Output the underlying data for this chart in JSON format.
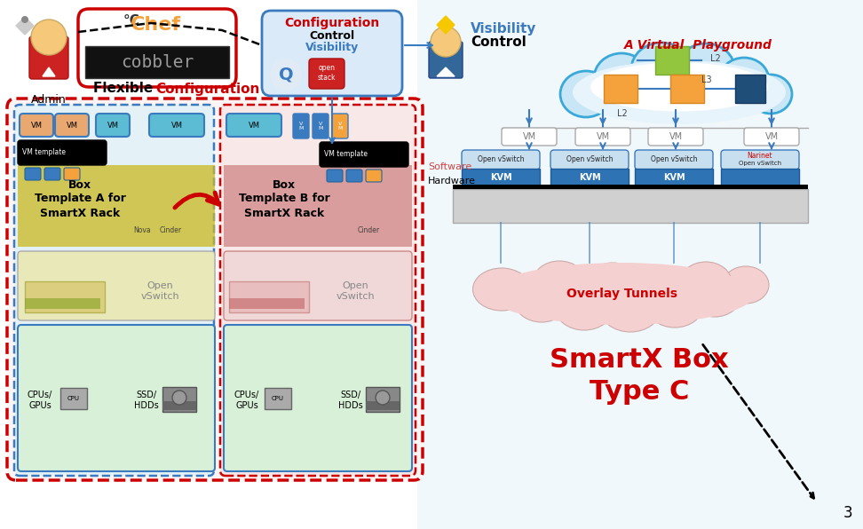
{
  "fig_width": 9.72,
  "fig_height": 5.96,
  "background_color": "#ffffff",
  "virtual_playground_title": "A Virtual  Playground",
  "visibility_text1": "Visibility",
  "visibility_text2": "Control",
  "config_text1": "Configuration",
  "config_text2": "Control",
  "config_text3": "Visibility",
  "flexible_text1": "Flexible ",
  "flexible_text2": "Configuration",
  "admin_text": "Admin",
  "smartx_text1": "SmartX Box",
  "smartx_text2": "Type C",
  "overlay_text": "Overlay Tunnels",
  "software_text": "Software",
  "hardware_text": "Hardware",
  "page_number": "3",
  "cloud_color": "#4db8e8",
  "green_box_color": "#92c63e",
  "orange_box_color": "#f5a23d",
  "dark_blue_box_color": "#1f4e79",
  "kvm_color": "#2e74b5",
  "red_border_color": "#cc0000",
  "teal_vm_color": "#4db8c8",
  "overlay_cloud_fill": "#f5c6c6"
}
